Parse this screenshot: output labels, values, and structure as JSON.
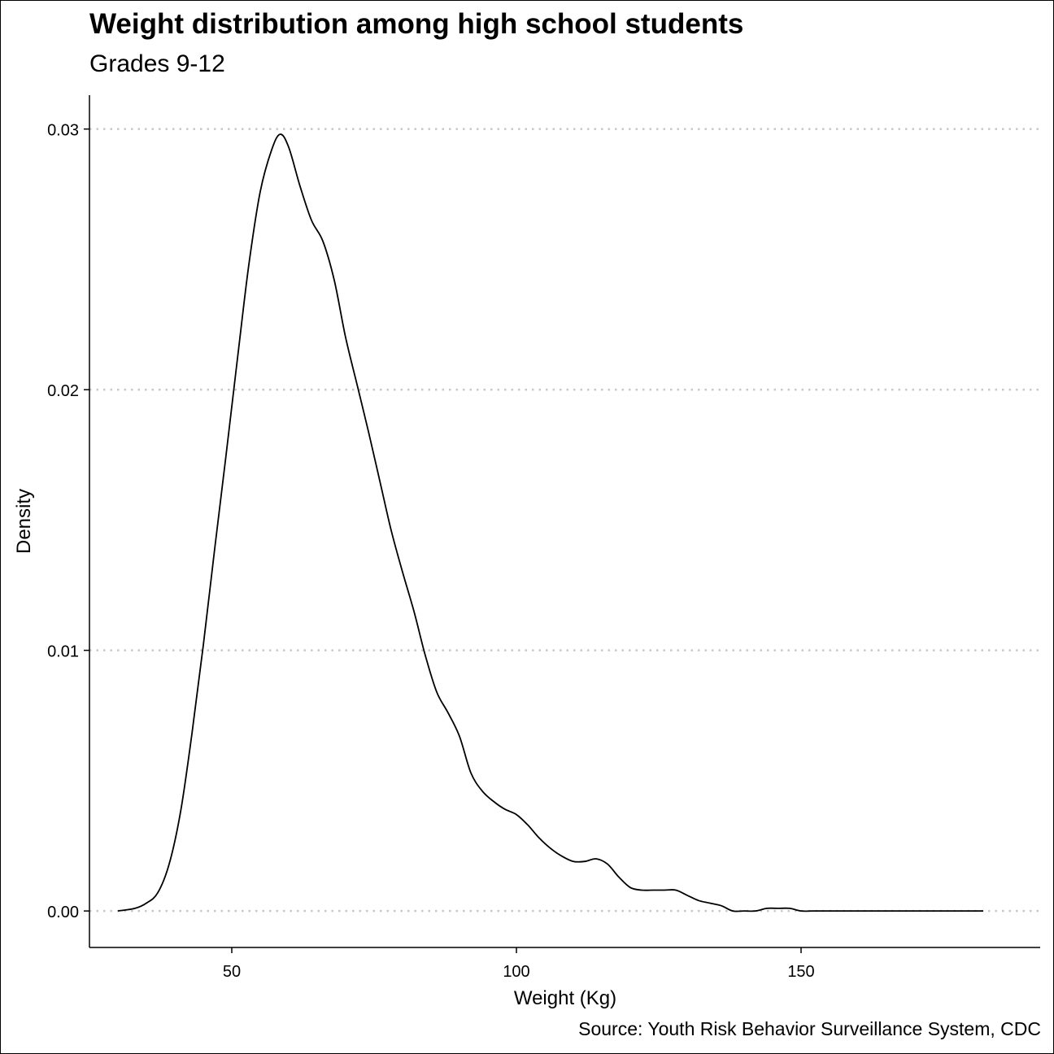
{
  "chart_data": {
    "type": "line",
    "title": "Weight distribution among high school students",
    "subtitle": "Grades 9-12",
    "xlabel": "Weight (Kg)",
    "ylabel": "Density",
    "caption": "Source: Youth Risk Behavior Surveillance System, CDC",
    "xlim": [
      25,
      192
    ],
    "ylim": [
      -0.0014,
      0.0313
    ],
    "x_ticks": [
      50,
      100,
      150
    ],
    "x_tick_labels": [
      "50",
      "100",
      "150"
    ],
    "y_ticks": [
      0,
      0.01,
      0.02,
      0.03
    ],
    "y_tick_labels": [
      "0.00",
      "0.01",
      "0.02",
      "0.03"
    ],
    "grid": "horizontal dotted",
    "legend": "none",
    "line_color": "#000000",
    "grid_color": "#c8c8c8",
    "series": [
      {
        "x": [
          30,
          33,
          35,
          37,
          39,
          41,
          43,
          45,
          47,
          49,
          51,
          53,
          55,
          57,
          58.5,
          60,
          62,
          64,
          66,
          68,
          70,
          72,
          74,
          76,
          78,
          80,
          82,
          84,
          86,
          88,
          90,
          92,
          94,
          96,
          98,
          100,
          102,
          104,
          106,
          108,
          110,
          112,
          114,
          116,
          118,
          120,
          122,
          124,
          126,
          128,
          130,
          132,
          134,
          136,
          138,
          140,
          142,
          144,
          146,
          148,
          150,
          152,
          154,
          156,
          158,
          160,
          162,
          165,
          170,
          175,
          182
        ],
        "y": [
          0.0,
          0.0001,
          0.0003,
          0.0007,
          0.0018,
          0.0038,
          0.0068,
          0.0102,
          0.0139,
          0.0175,
          0.0212,
          0.0248,
          0.0276,
          0.0292,
          0.0298,
          0.0293,
          0.0278,
          0.0265,
          0.0257,
          0.0242,
          0.022,
          0.0202,
          0.0184,
          0.0165,
          0.0146,
          0.013,
          0.0115,
          0.0098,
          0.0084,
          0.0076,
          0.0067,
          0.0053,
          0.0046,
          0.0042,
          0.0039,
          0.0037,
          0.0033,
          0.0028,
          0.0024,
          0.0021,
          0.0019,
          0.0019,
          0.002,
          0.0018,
          0.0013,
          0.0009,
          0.0008,
          0.0008,
          0.0008,
          0.0008,
          0.0006,
          0.0004,
          0.0003,
          0.0002,
          0.0,
          0.0,
          0.0,
          0.0001,
          0.0001,
          0.0001,
          0.0,
          0.0,
          0.0,
          0.0,
          0.0,
          0.0,
          0.0,
          0.0,
          0.0,
          0.0,
          0.0
        ]
      }
    ]
  }
}
